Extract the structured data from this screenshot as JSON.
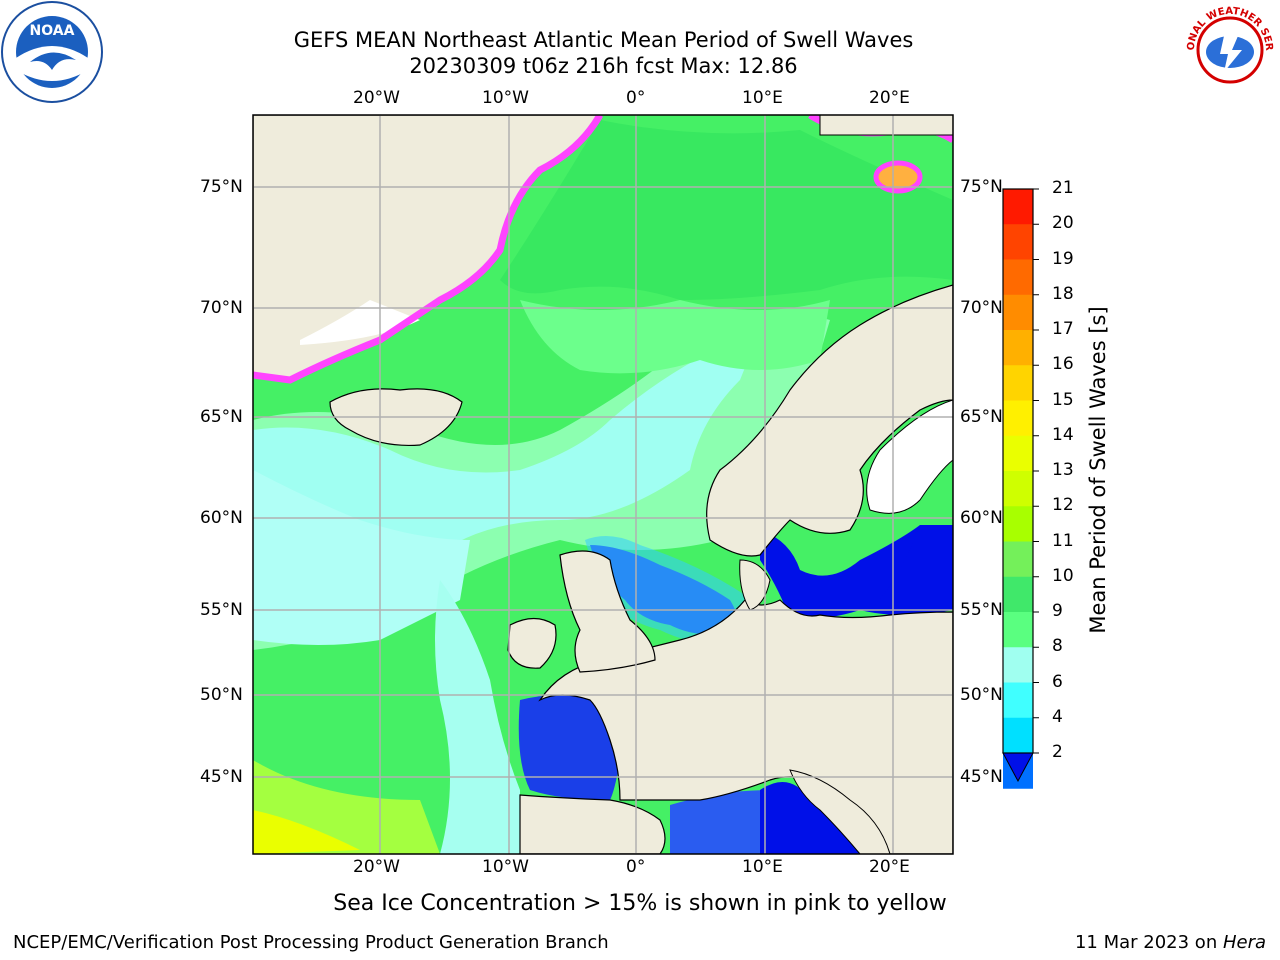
{
  "header": {
    "title_line1": "GEFS MEAN Northeast Atlantic Mean Period of Swell Waves",
    "title_line2": "20230309 t06z 216h fcst   Max: 12.86"
  },
  "logos": {
    "left": {
      "name": "noaa-logo",
      "text": "NOAA"
    },
    "right": {
      "name": "nws-logo",
      "text": "NATIONAL WEATHER SERVICE"
    }
  },
  "map": {
    "lon_labels": [
      "20°W",
      "10°W",
      "0°",
      "10°E",
      "20°E"
    ],
    "lat_labels": [
      "75°N",
      "70°N",
      "65°N",
      "60°N",
      "55°N",
      "50°N",
      "45°N"
    ],
    "colors": {
      "land": "#efecdc",
      "ocean_high": "#3cf03c",
      "ocean_mid": "#7dff9a",
      "ocean_low": "#9efff0",
      "shallow": "#1a3fe8",
      "ice": "#ff44ff",
      "grid": "#b0b0b0"
    }
  },
  "colorbar": {
    "title": "Mean Period of Swell Waves [s]",
    "tick_labels": [
      "21",
      "20",
      "19",
      "18",
      "17",
      "16",
      "15",
      "14",
      "13",
      "12",
      "11",
      "10",
      "9",
      "8",
      "6",
      "4",
      "2"
    ],
    "colors": [
      "#ff1a00",
      "#ff4400",
      "#ff6a00",
      "#ff8c00",
      "#ffb000",
      "#ffd400",
      "#fff000",
      "#eaff00",
      "#cfff00",
      "#a8ff00",
      "#74f05a",
      "#40e86a",
      "#5aff80",
      "#a0fff0",
      "#40ffff",
      "#00e0ff",
      "#0070ff"
    ]
  },
  "note": "Sea Ice Concentration > 15% is shown in pink to yellow",
  "footer": {
    "left": "NCEP/EMC/Verification Post Processing Product Generation Branch",
    "right_date": "11 Mar 2023 on ",
    "right_host": "Hera"
  }
}
